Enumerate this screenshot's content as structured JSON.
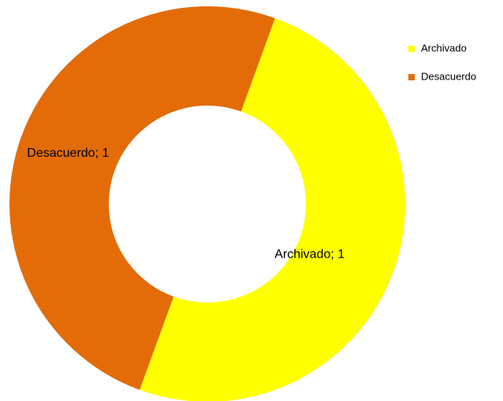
{
  "chart_data": {
    "type": "donut",
    "categories": [
      "Archivado",
      "Desacuerdo"
    ],
    "values": [
      1,
      1
    ],
    "value_labels": [
      "Archivado; 1",
      "Desacuerdo; 1"
    ],
    "colors": [
      "#ffff00",
      "#e36c09"
    ],
    "legend": "right"
  }
}
